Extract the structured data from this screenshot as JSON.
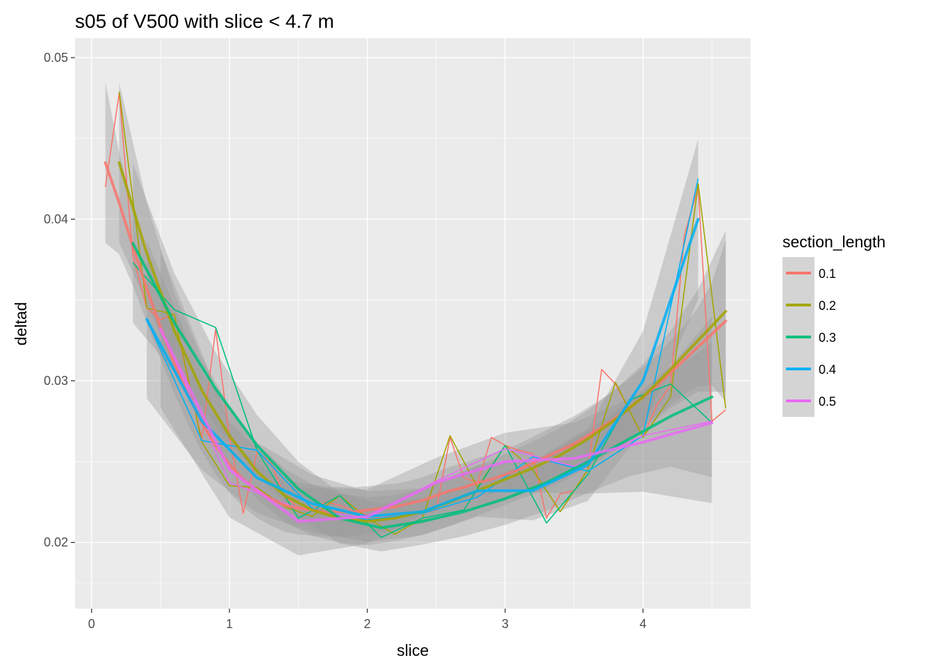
{
  "chart_data": {
    "type": "line",
    "title": "s05 of V500 with slice < 4.7 m",
    "xlabel": "slice",
    "ylabel": "deltad",
    "xlim": [
      -0.12,
      4.78
    ],
    "ylim": [
      0.0159,
      0.0512
    ],
    "x_ticks": [
      0,
      1,
      2,
      3,
      4
    ],
    "x_tick_labels": [
      "0",
      "1",
      "2",
      "3",
      "4"
    ],
    "y_ticks": [
      0.02,
      0.03,
      0.04,
      0.05
    ],
    "y_tick_labels": [
      "0.02",
      "0.03",
      "0.04",
      "0.05"
    ],
    "grid": true,
    "legend": {
      "title": "section_length",
      "position": "right"
    },
    "series": [
      {
        "name": "0.1",
        "color": "#F8766D",
        "x": [
          0.1,
          0.2,
          0.3,
          0.4,
          0.5,
          0.6,
          0.7,
          0.8,
          0.9,
          1.0,
          1.1,
          1.2,
          1.3,
          1.4,
          1.5,
          1.6,
          1.7,
          1.8,
          1.9,
          2.0,
          2.1,
          2.2,
          2.3,
          2.4,
          2.5,
          2.6,
          2.7,
          2.8,
          2.9,
          3.0,
          3.1,
          3.2,
          3.3,
          3.4,
          3.5,
          3.6,
          3.7,
          3.8,
          3.9,
          4.0,
          4.1,
          4.2,
          4.3,
          4.4,
          4.5,
          4.6
        ],
        "y": [
          0.042,
          0.0478,
          0.0377,
          0.0345,
          0.0338,
          0.0341,
          0.03,
          0.0264,
          0.0332,
          0.0265,
          0.0218,
          0.0256,
          0.025,
          0.0228,
          0.0222,
          0.022,
          0.0225,
          0.0223,
          0.022,
          0.0217,
          0.0215,
          0.0217,
          0.0219,
          0.0218,
          0.022,
          0.0265,
          0.024,
          0.0237,
          0.0265,
          0.026,
          0.0257,
          0.0255,
          0.0215,
          0.023,
          0.0232,
          0.0245,
          0.0307,
          0.0298,
          0.0282,
          0.0265,
          0.0285,
          0.0297,
          0.039,
          0.042,
          0.0275,
          0.0282
        ],
        "trend_y": [
          0.0435,
          0.041,
          0.0383,
          0.0357,
          0.0333,
          0.0311,
          0.0291,
          0.0274,
          0.026,
          0.0248,
          0.0239,
          0.0232,
          0.0227,
          0.0223,
          0.0221,
          0.022,
          0.0219,
          0.0219,
          0.0219,
          0.022,
          0.0221,
          0.0222,
          0.0224,
          0.0226,
          0.0229,
          0.0232,
          0.0234,
          0.0237,
          0.0239,
          0.0242,
          0.0245,
          0.0249,
          0.0253,
          0.0257,
          0.0261,
          0.0266,
          0.0271,
          0.0277,
          0.0283,
          0.029,
          0.0297,
          0.0305,
          0.0313,
          0.0321,
          0.0329,
          0.0337
        ]
      },
      {
        "name": "0.2",
        "color": "#A3A500",
        "x": [
          0.2,
          0.4,
          0.6,
          0.8,
          1.0,
          1.2,
          1.4,
          1.6,
          1.8,
          2.0,
          2.2,
          2.4,
          2.6,
          2.8,
          3.0,
          3.2,
          3.4,
          3.6,
          3.8,
          4.0,
          4.2,
          4.4,
          4.6
        ],
        "y": [
          0.0479,
          0.0345,
          0.0341,
          0.0262,
          0.0235,
          0.0234,
          0.0222,
          0.0216,
          0.0229,
          0.0215,
          0.0205,
          0.0215,
          0.0266,
          0.0234,
          0.026,
          0.0245,
          0.0219,
          0.0245,
          0.0299,
          0.0265,
          0.029,
          0.0422,
          0.0283
        ],
        "trend_y": [
          0.0435,
          0.0379,
          0.0331,
          0.0294,
          0.0266,
          0.0244,
          0.0229,
          0.022,
          0.0215,
          0.0213,
          0.0215,
          0.0219,
          0.0225,
          0.0232,
          0.0239,
          0.0246,
          0.0254,
          0.0264,
          0.0276,
          0.029,
          0.0307,
          0.0325,
          0.0343
        ]
      },
      {
        "name": "0.3",
        "color": "#00BF7D",
        "x": [
          0.3,
          0.6,
          0.9,
          1.2,
          1.5,
          1.8,
          2.1,
          2.4,
          2.7,
          3.0,
          3.3,
          3.6,
          3.9,
          4.2,
          4.5
        ],
        "y": [
          0.0373,
          0.0344,
          0.0333,
          0.0257,
          0.0215,
          0.0229,
          0.0203,
          0.0215,
          0.022,
          0.026,
          0.0212,
          0.0242,
          0.0288,
          0.0298,
          0.0274
        ],
        "trend_y": [
          0.0385,
          0.0336,
          0.0295,
          0.026,
          0.0233,
          0.0215,
          0.0209,
          0.0213,
          0.0219,
          0.0227,
          0.0237,
          0.025,
          0.0264,
          0.0278,
          0.029
        ]
      },
      {
        "name": "0.4",
        "color": "#00B0F6",
        "x": [
          0.4,
          0.8,
          1.2,
          1.6,
          2.0,
          2.4,
          2.8,
          3.2,
          3.6,
          4.0,
          4.4
        ],
        "y": [
          0.0338,
          0.0263,
          0.0257,
          0.0221,
          0.0214,
          0.0218,
          0.0228,
          0.0253,
          0.0244,
          0.0266,
          0.0425
        ],
        "trend_y": [
          0.0338,
          0.0275,
          0.024,
          0.0224,
          0.0216,
          0.0219,
          0.0232,
          0.0232,
          0.0248,
          0.03,
          0.04
        ]
      },
      {
        "name": "0.5",
        "color": "#E76BF3",
        "x": [
          0.5,
          1.0,
          1.5,
          2.0,
          2.5,
          3.0,
          3.5,
          4.0,
          4.5
        ],
        "y": [
          0.0332,
          0.0237,
          0.0221,
          0.0215,
          0.0238,
          0.0258,
          0.0247,
          0.0266,
          0.0275
        ],
        "trend_y": [
          0.0332,
          0.0245,
          0.0213,
          0.0216,
          0.0237,
          0.025,
          0.0252,
          0.0262,
          0.0274
        ]
      }
    ]
  }
}
